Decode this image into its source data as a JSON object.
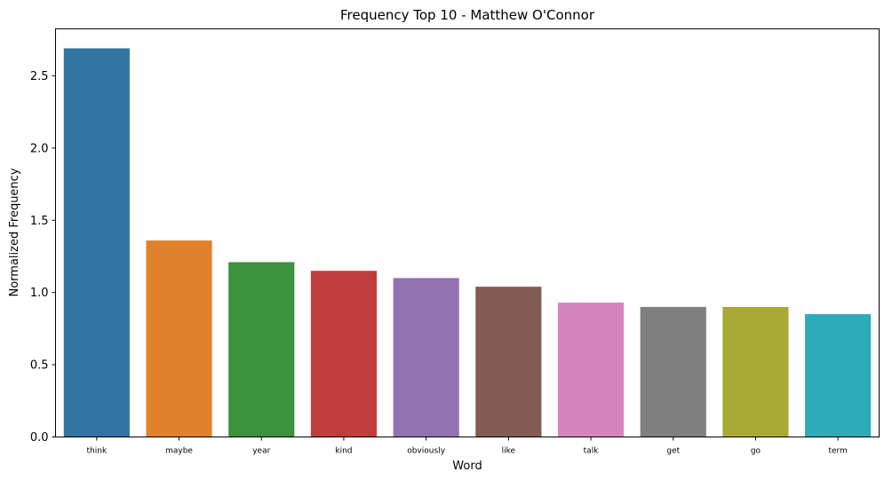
{
  "chart_data": {
    "type": "bar",
    "title": "Frequency Top 10 - Matthew O'Connor",
    "xlabel": "Word",
    "ylabel": "Normalized Frequency",
    "categories": [
      "think",
      "maybe",
      "year",
      "kind",
      "obviously",
      "like",
      "talk",
      "get",
      "go",
      "term"
    ],
    "values": [
      2.69,
      1.36,
      1.21,
      1.15,
      1.1,
      1.04,
      0.93,
      0.9,
      0.9,
      0.85
    ],
    "colors": [
      "#3274a1",
      "#e1812c",
      "#3a923a",
      "#c03d3e",
      "#9372b2",
      "#845b53",
      "#d684bd",
      "#7f7f7f",
      "#a9aa35",
      "#2eabb8"
    ],
    "yticks": [
      "0.0",
      "0.5",
      "1.0",
      "1.5",
      "2.0",
      "2.5"
    ],
    "ylim": [
      0,
      2.825
    ],
    "grid": false,
    "legend": "none"
  }
}
